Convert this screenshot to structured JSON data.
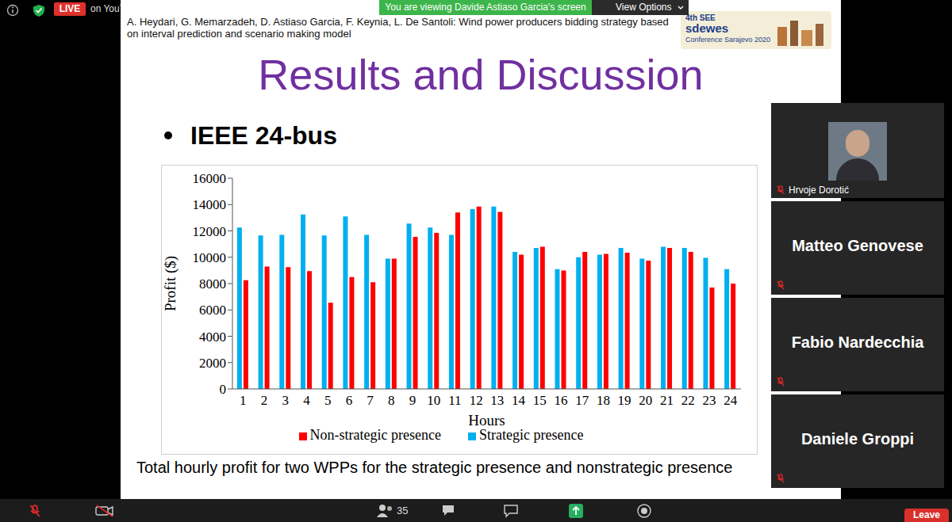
{
  "screen": {
    "top_bar": {
      "live": "LIVE",
      "stream": "on YouTube",
      "viewing": "You are viewing Davide Astiaso Garcia's screen",
      "view_options": "View Options"
    },
    "slide": {
      "citation": "A. Heydari, G. Memarzadeh, D. Astiaso Garcia, F. Keynia, L. De Santoli: Wind power producers bidding strategy based on interval prediction and scenario making model",
      "logo": [
        "4th SEE",
        "sdewes",
        "Conference",
        "Sarajevo 2020"
      ],
      "title": "Results and Discussion",
      "bullet": "IEEE 24-bus",
      "caption": "Total hourly profit for two WPPs for the strategic presence and nonstrategic presence"
    },
    "participants": [
      "Hrvoje Dorotić",
      "Matteo Genovese",
      "Fabio Nardecchia",
      "Daniele Groppi"
    ],
    "toolbar": {
      "participants_count": 35,
      "leave": "Leave"
    }
  },
  "chart_data": {
    "type": "bar",
    "x_label": "Hours",
    "y_label": "Profit ($)",
    "categories": [
      "1",
      "2",
      "3",
      "4",
      "5",
      "6",
      "7",
      "8",
      "9",
      "10",
      "11",
      "12",
      "13",
      "14",
      "15",
      "16",
      "17",
      "18",
      "19",
      "20",
      "21",
      "22",
      "23",
      "24"
    ],
    "series": [
      {
        "name": "Strategic presence",
        "color": "#00b0f0",
        "values": [
          12250,
          11650,
          11700,
          13250,
          11650,
          13100,
          11700,
          9900,
          12550,
          12250,
          11700,
          13650,
          13850,
          10400,
          10700,
          9100,
          10000,
          10200,
          10700,
          9900,
          10800,
          10700,
          9950,
          9100
        ]
      },
      {
        "name": "Non-strategic presence",
        "color": "#ff0000",
        "values": [
          8250,
          9300,
          9250,
          8950,
          6550,
          8500,
          8100,
          9900,
          11550,
          11850,
          13400,
          13850,
          13450,
          10200,
          10800,
          9000,
          10400,
          10250,
          10350,
          9750,
          10700,
          10400,
          7700,
          8000
        ]
      }
    ],
    "ylim": [
      0,
      16000
    ],
    "yticks": [
      0,
      2000,
      4000,
      6000,
      8000,
      10000,
      12000,
      14000,
      16000
    ],
    "grid": false,
    "legend": "bottom"
  }
}
